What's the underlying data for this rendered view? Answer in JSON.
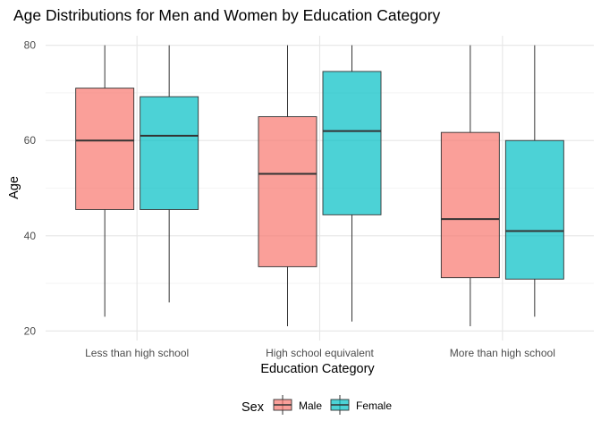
{
  "chart_data": {
    "type": "boxplot",
    "title": "Age Distributions for Men and Women by Education Category",
    "xlabel": "Education Category",
    "ylabel": "Age",
    "categories": [
      "Less than high school",
      "High school equivalent",
      "More than high school"
    ],
    "ylim": [
      18,
      82
    ],
    "yticks": [
      20,
      40,
      60,
      80
    ],
    "grid": true,
    "legend": {
      "title": "Sex",
      "position": "bottom"
    },
    "series": [
      {
        "name": "Male",
        "color": "#F8766D",
        "boxes": [
          {
            "min": 23,
            "q1": 45.5,
            "median": 60,
            "q3": 71,
            "max": 80
          },
          {
            "min": 21,
            "q1": 33.5,
            "median": 53,
            "q3": 65,
            "max": 80
          },
          {
            "min": 21,
            "q1": 31.2,
            "median": 43.5,
            "q3": 61.7,
            "max": 80
          }
        ]
      },
      {
        "name": "Female",
        "color": "#00BFC4",
        "boxes": [
          {
            "min": 26,
            "q1": 45.5,
            "median": 61,
            "q3": 69.2,
            "max": 80
          },
          {
            "min": 22,
            "q1": 44.4,
            "median": 62,
            "q3": 74.5,
            "max": 80
          },
          {
            "min": 23,
            "q1": 30.9,
            "median": 41,
            "q3": 60,
            "max": 80
          }
        ]
      }
    ]
  }
}
